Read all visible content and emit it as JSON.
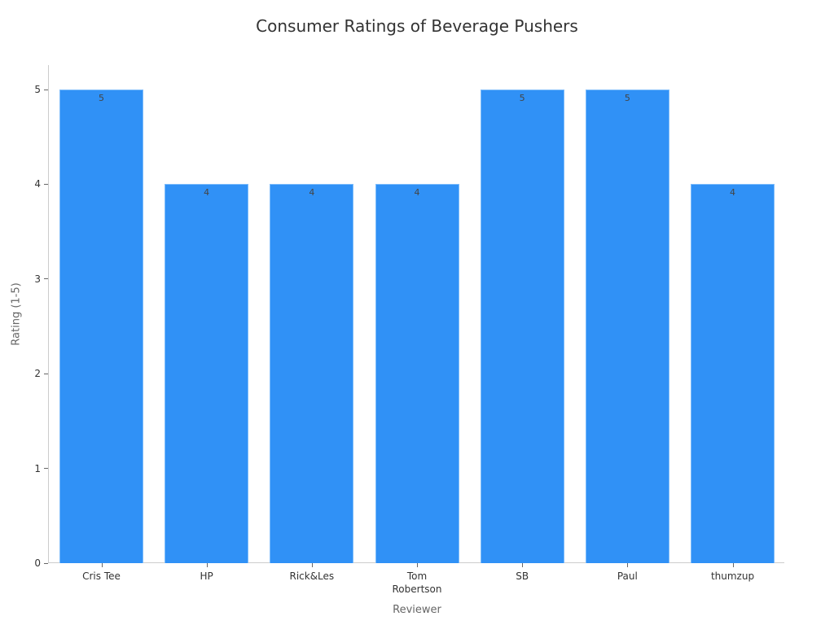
{
  "chart_data": {
    "type": "bar",
    "title": "Consumer Ratings of Beverage Pushers",
    "xlabel": "Reviewer",
    "ylabel": "Rating (1-5)",
    "categories": [
      "Cris Tee",
      "HP",
      "Rick&Les",
      "Tom Robertson",
      "SB",
      "Paul",
      "thumzup"
    ],
    "values": [
      5,
      4,
      4,
      4,
      5,
      5,
      4
    ],
    "data_labels": [
      "5",
      "4",
      "4",
      "4",
      "5",
      "5",
      "4"
    ],
    "ylim": [
      0,
      5
    ],
    "yticks": [
      0,
      1,
      2,
      3,
      4,
      5
    ],
    "grid": false,
    "legend": null,
    "bar_color": "#3091f6"
  },
  "labels": {
    "title": "Consumer Ratings of Beverage Pushers",
    "xlabel": "Reviewer",
    "ylabel": "Rating (1-5)",
    "yticks": [
      "0",
      "1",
      "2",
      "3",
      "4",
      "5"
    ],
    "categories": [
      "Cris Tee",
      "HP",
      "Rick&Les",
      "Tom\nRobertson",
      "SB",
      "Paul",
      "thumzup"
    ],
    "values": [
      "5",
      "4",
      "4",
      "4",
      "5",
      "5",
      "4"
    ]
  }
}
